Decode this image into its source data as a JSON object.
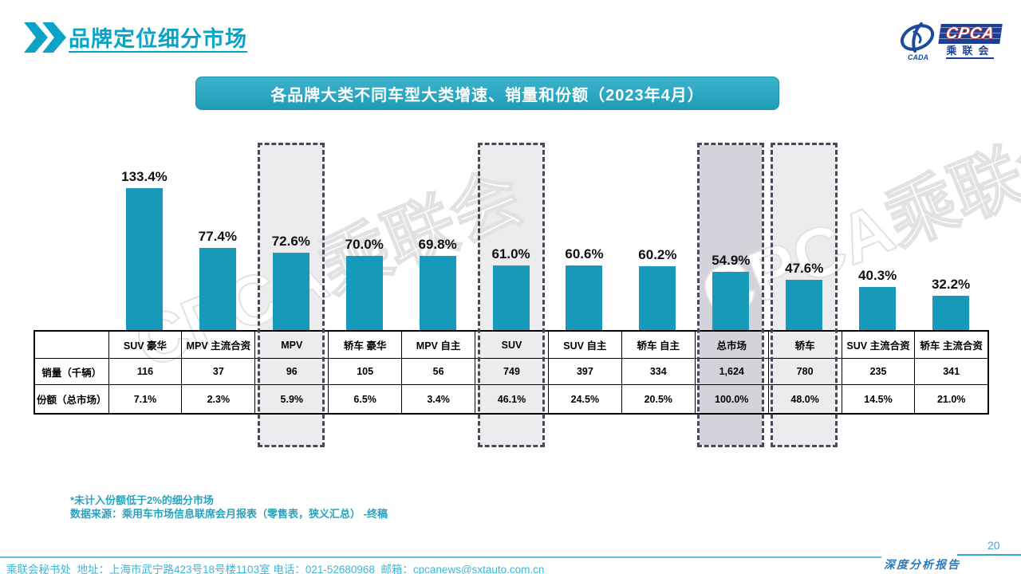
{
  "header": {
    "title": "品牌定位细分市场",
    "logo": {
      "cpca": "CPCA",
      "sub_cn": "乘联会",
      "cada": "CADA"
    }
  },
  "banner": {
    "title": "各品牌大类不同车型大类增速、销量和份额（2023年4月）"
  },
  "watermark": {
    "text": "CPCA乘联会"
  },
  "chart_data": {
    "type": "bar",
    "title": "各品牌大类不同车型大类增速、销量和份额（2023年4月）",
    "categories": [
      "SUV 豪华",
      "MPV 主流合资",
      "MPV",
      "轿车 豪华",
      "MPV 自主",
      "SUV",
      "SUV 自主",
      "轿车 自主",
      "总市场",
      "轿车",
      "SUV 主流合资",
      "轿车 主流合资"
    ],
    "series": [
      {
        "name": "增速",
        "unit": "%",
        "values": [
          133.4,
          77.4,
          72.6,
          70.0,
          69.8,
          61.0,
          60.6,
          60.2,
          54.9,
          47.6,
          40.3,
          32.2
        ]
      }
    ],
    "table_rows": [
      {
        "label": "销量（千辆）",
        "values": [
          "116",
          "37",
          "96",
          "105",
          "56",
          "749",
          "397",
          "334",
          "1,624",
          "780",
          "235",
          "341"
        ]
      },
      {
        "label": "份额（总市场）",
        "values": [
          "7.1%",
          "2.3%",
          "5.9%",
          "6.5%",
          "3.4%",
          "46.1%",
          "24.5%",
          "20.5%",
          "100.0%",
          "48.0%",
          "14.5%",
          "21.0%"
        ]
      }
    ],
    "highlighted_light": [
      2,
      5,
      9
    ],
    "highlighted_dark": [
      8
    ],
    "bar_color": "#1799b9",
    "highlight_light_color": "#ececee",
    "highlight_dark_color": "#d3d3dc",
    "ylim": [
      0,
      145
    ],
    "grid": false,
    "legend": "none"
  },
  "notes": {
    "line1": "*未计入份额低于2%的细分市场",
    "line2": "数据来源：乘用车市场信息联席会月报表（零售表，狭义汇总） -终稿"
  },
  "footer": {
    "text": "乘联会秘书处  地址：上海市武宁路423号18号楼1103室 电话：021-52680968  邮箱：cpcanews@sxtauto.com.cn",
    "report": "深度分析报告",
    "page": "20"
  }
}
